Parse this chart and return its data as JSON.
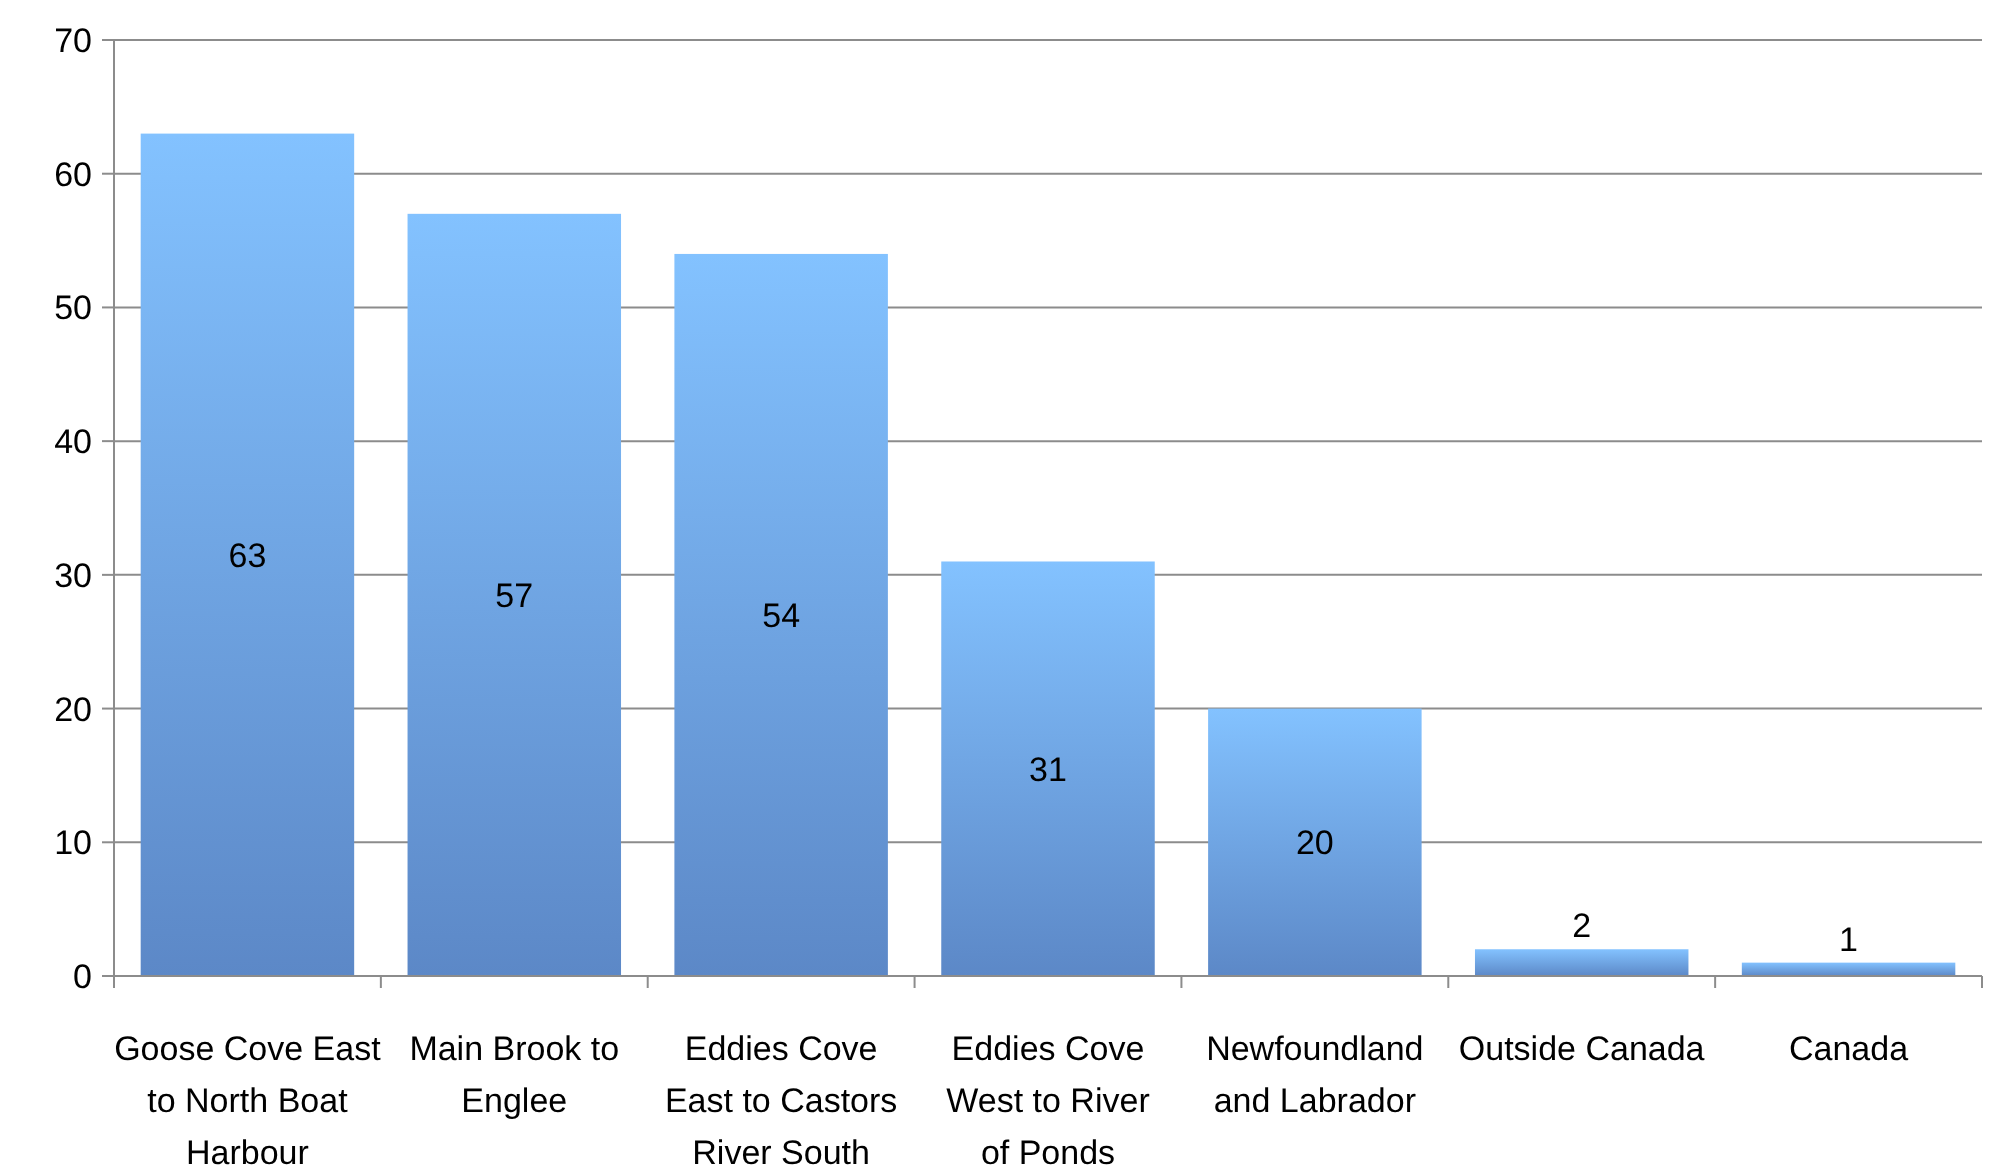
{
  "chart_data": {
    "type": "bar",
    "categories": [
      "Goose Cove East to North Boat Harbour",
      "Main Brook to Englee",
      "Eddies Cove East to Castors River South",
      "Eddies Cove West to River of Ponds",
      "Newfoundland and Labrador",
      "Outside Canada",
      "Canada"
    ],
    "values": [
      63,
      57,
      54,
      31,
      20,
      2,
      1
    ],
    "color": "#6a9de6",
    "ylim": [
      0,
      70
    ],
    "yticks": [
      0,
      10,
      20,
      30,
      40,
      50,
      60,
      70
    ],
    "grid": "y",
    "data_labels": true
  }
}
